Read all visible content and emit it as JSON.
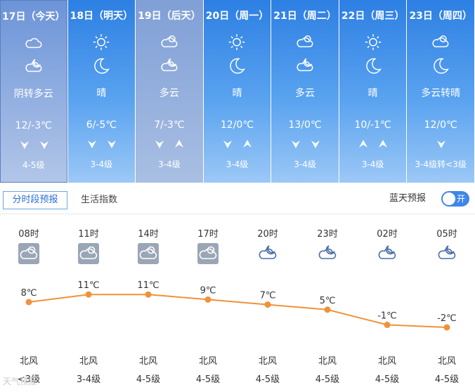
{
  "days": [
    {
      "header": "17日（今天）",
      "desc": "阴转多云",
      "temp": "12/-3℃",
      "level": "4-5级",
      "icon1": "cloud-outline-icon",
      "icon2": "partly-cloudy-night-icon",
      "wind": [
        "down",
        "down"
      ],
      "state": "today"
    },
    {
      "header": "18日（明天）",
      "desc": "晴",
      "temp": "6/-5℃",
      "level": "3-4级",
      "icon1": "sun-icon",
      "icon2": "moon-icon",
      "wind": [
        "down",
        "down"
      ],
      "state": "future"
    },
    {
      "header": "19日（后天）",
      "desc": "多云",
      "temp": "7/-3℃",
      "level": "3-4级",
      "icon1": "partly-cloudy-icon",
      "icon2": "partly-cloudy-night-icon",
      "wind": [
        "down",
        "up"
      ],
      "state": "past"
    },
    {
      "header": "20日（周一）",
      "desc": "晴",
      "temp": "12/0℃",
      "level": "3-4级",
      "icon1": "sun-icon",
      "icon2": "moon-icon",
      "wind": [
        "down",
        "up"
      ],
      "state": "future"
    },
    {
      "header": "21日（周二）",
      "desc": "多云",
      "temp": "13/0℃",
      "level": "3-4级",
      "icon1": "partly-cloudy-icon",
      "icon2": "partly-cloudy-night-icon",
      "wind": [
        "down",
        "down"
      ],
      "state": "future"
    },
    {
      "header": "22日（周三）",
      "desc": "晴",
      "temp": "10/-1℃",
      "level": "3-4级",
      "icon1": "sun-icon",
      "icon2": "moon-icon",
      "wind": [
        "up",
        "up"
      ],
      "state": "future"
    },
    {
      "header": "23日（周四）",
      "desc": "多云转晴",
      "temp": "12/0℃",
      "level": "3-4级转<3级",
      "icon1": "partly-cloudy-icon",
      "icon2": "moon-icon",
      "wind": [
        "down"
      ],
      "state": "future"
    }
  ],
  "tabs": {
    "active": "分时段预报",
    "other": "生活指数"
  },
  "bluesky": {
    "label": "蓝天预报",
    "toggle": "开"
  },
  "hourly": {
    "times": [
      "08时",
      "11时",
      "14时",
      "17时",
      "20时",
      "23时",
      "02时",
      "05时"
    ],
    "temps": [
      8,
      11,
      11,
      9,
      7,
      5,
      -1,
      -2
    ],
    "temp_labels": [
      "8℃",
      "11℃",
      "11℃",
      "9℃",
      "7℃",
      "5℃",
      "-1℃",
      "-2℃"
    ],
    "icons": [
      "cloudy-day-icon",
      "cloudy-day-icon",
      "cloudy-day-icon",
      "cloudy-day-icon",
      "partly-cloudy-night-icon",
      "partly-cloudy-night-icon",
      "partly-cloudy-night-icon",
      "partly-cloudy-night-icon"
    ],
    "wind_dir": [
      "北风",
      "北风",
      "北风",
      "北风",
      "北风",
      "北风",
      "北风",
      "北风"
    ],
    "wind_level": [
      "<3级",
      "3-4级",
      "4-5级",
      "4-5级",
      "4-5级",
      "4-5级",
      "4-5级",
      "4-5级"
    ]
  },
  "watermark": "天气预报",
  "colors": {
    "line": "#f0923a",
    "accent": "#3f86e8"
  }
}
